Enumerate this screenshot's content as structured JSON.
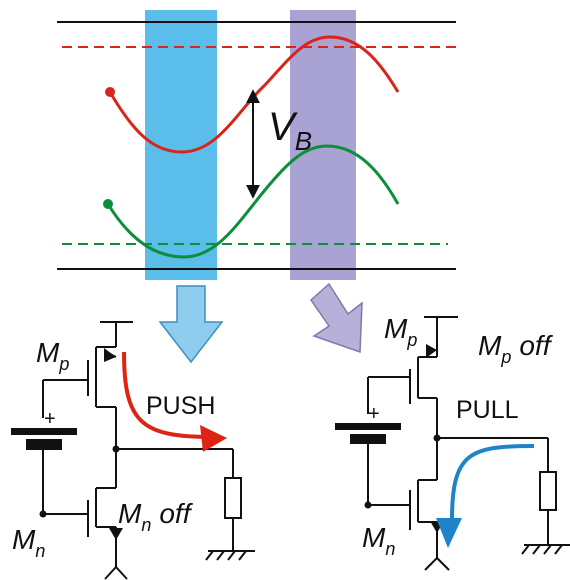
{
  "colors": {
    "red_wave": "#d8241a",
    "green_wave": "#0c8f3a",
    "blue_band": "#5bbde9",
    "purple_band": "#a9a3d3",
    "blue_arrow": "#8fcdee",
    "purple_arrow": "#b7b1d9",
    "push_current": "#e02414",
    "pull_current": "#1d84c9",
    "wire": "#111111"
  },
  "labels": {
    "vb": "V",
    "vb_sub": "B",
    "push_text": "PUSH",
    "pull_text": "PULL",
    "plus_left": "+",
    "plus_right": "+"
  },
  "left_circuit": {
    "mp": "M",
    "mp_sub": "p",
    "mn": "M",
    "mn_sub": "n",
    "mn_state": "off"
  },
  "right_circuit": {
    "mp": "M",
    "mp_sub": "p",
    "mp_state_m": "M",
    "mp_state_sub": "p",
    "mp_state": "off",
    "mn": "M",
    "mn_sub": "n"
  }
}
